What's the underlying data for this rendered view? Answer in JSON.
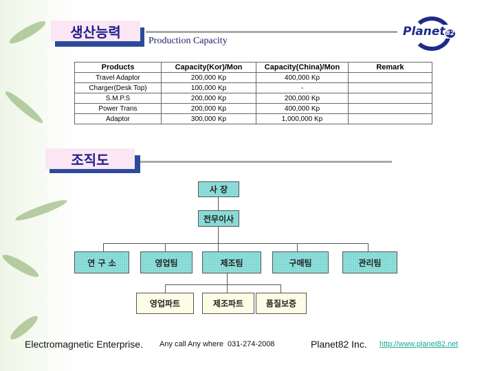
{
  "header": {
    "title_kr": "생산능력",
    "subtitle": "Production Capacity",
    "logo": "Planet82"
  },
  "table": {
    "columns": [
      "Products",
      "Capacity(Kor)/Mon",
      "Capacity(China)/Mon",
      "Remark"
    ],
    "rows": [
      [
        "Travel Adaptor",
        "200,000 Kp",
        "400,000 Kp",
        ""
      ],
      [
        "Charger(Desk Top)",
        "100,000 Kp",
        "-",
        ""
      ],
      [
        "S.M.P.S",
        "200,000 Kp",
        "200,000 Kp",
        ""
      ],
      [
        "Power Trans",
        "200,000 Kp",
        "400,000 Kp",
        ""
      ],
      [
        "Adaptor",
        "300,000 Kp",
        "1,000,000 Kp",
        ""
      ]
    ]
  },
  "org": {
    "title": "조직도",
    "ceo": "사 장",
    "director": "전무이사",
    "teams": [
      "연 구 소",
      "영업팀",
      "제조팀",
      "구매팀",
      "관리팀"
    ],
    "parts": [
      "영업파트",
      "제조파트",
      "품질보증"
    ]
  },
  "footer": {
    "company": "Electromagnetic Enterprise.",
    "slogan": "Any call Any where  031-274-2008",
    "brand": "Planet82 Inc.",
    "url": "http://www.planet82.net"
  },
  "colors": {
    "accent": "#2c4a9a",
    "node": "#7fd6d2",
    "link": "#1aa89a"
  }
}
